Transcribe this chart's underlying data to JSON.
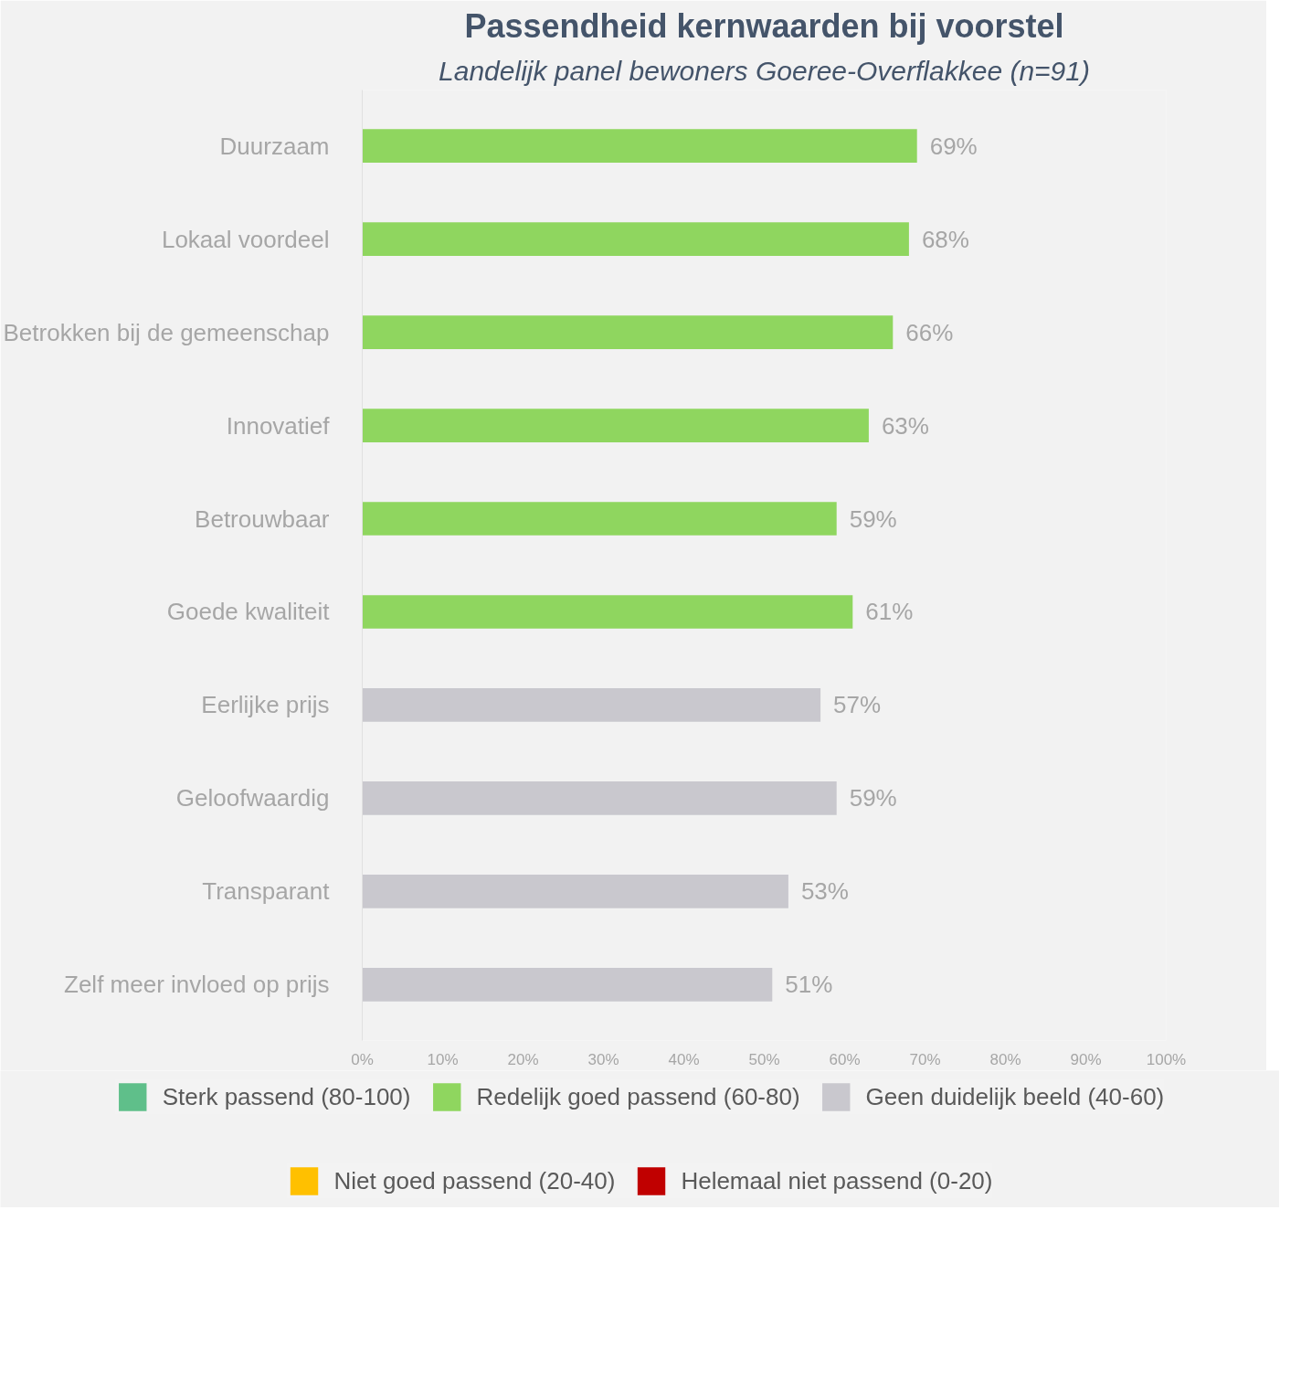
{
  "chart_data": {
    "type": "bar",
    "orientation": "horizontal",
    "title": "Passendheid kernwaarden bij voorstel",
    "subtitle": "Landelijk panel bewoners Goeree-Overflakkee (n=91)",
    "categories": [
      "Duurzaam",
      "Lokaal voordeel",
      "Betrokken bij de gemeenschap",
      "Innovatief",
      "Betrouwbaar",
      "Goede kwaliteit",
      "Eerlijke prijs",
      "Geloofwaardig",
      "Transparant",
      "Zelf meer invloed op prijs"
    ],
    "series": [
      {
        "name": "Sterk passend (80-100)",
        "color": "#5fbf8a",
        "values": [
          null,
          null,
          null,
          null,
          null,
          null,
          null,
          null,
          null,
          null
        ]
      },
      {
        "name": "Redelijk goed passend (60-80)",
        "color": "#8fd65f",
        "values": [
          69,
          68,
          66,
          63,
          59,
          61,
          null,
          null,
          null,
          null
        ],
        "value_labels": [
          "69%",
          "68%",
          "66%",
          "63%",
          "59%",
          "61%",
          null,
          null,
          null,
          null
        ]
      },
      {
        "name": "Geen duidelijk beeld (40-60)",
        "color": "#c9c8ce",
        "values": [
          null,
          null,
          null,
          null,
          null,
          null,
          57,
          59,
          53,
          51
        ],
        "value_labels": [
          null,
          null,
          null,
          null,
          null,
          null,
          "57%",
          "59%",
          "53%",
          "51%"
        ]
      },
      {
        "name": "Niet goed passend (20-40)",
        "color": "#ffc000",
        "values": [
          null,
          null,
          null,
          null,
          null,
          null,
          null,
          null,
          null,
          null
        ]
      },
      {
        "name": "Helemaal niet passend (0-20)",
        "color": "#c00000",
        "values": [
          null,
          null,
          null,
          null,
          null,
          null,
          null,
          null,
          null,
          null
        ]
      }
    ],
    "xlim": [
      0,
      100
    ],
    "xticks": [
      {
        "value": 0,
        "label": "0%"
      },
      {
        "value": 10,
        "label": "10%"
      },
      {
        "value": 20,
        "label": "20%"
      },
      {
        "value": 30,
        "label": "30%"
      },
      {
        "value": 40,
        "label": "40%"
      },
      {
        "value": 50,
        "label": "50%"
      },
      {
        "value": 60,
        "label": "60%"
      },
      {
        "value": 70,
        "label": "70%"
      },
      {
        "value": 80,
        "label": "80%"
      },
      {
        "value": 90,
        "label": "90%"
      },
      {
        "value": 100,
        "label": "100%"
      }
    ],
    "grid": false,
    "legend": "bottom"
  }
}
